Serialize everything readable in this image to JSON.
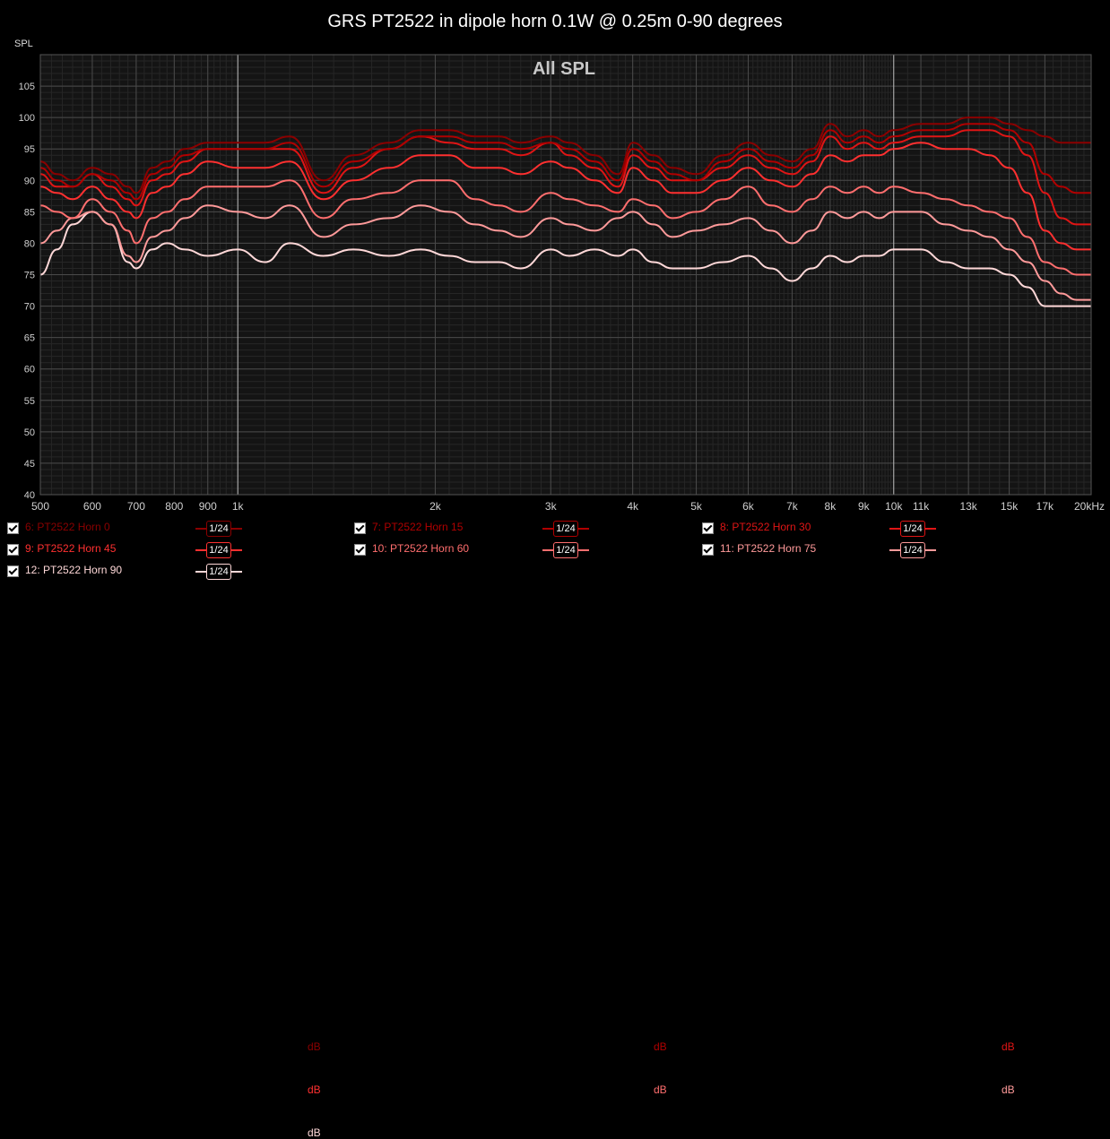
{
  "chart_data": {
    "type": "line",
    "title": "GRS PT2522 in dipole horn 0.1W @ 0.25m 0-90 degrees",
    "subtitle": "All SPL",
    "ylabel": "SPL",
    "xlabel": "",
    "x_scale": "log",
    "xlim": [
      500,
      20000
    ],
    "ylim": [
      40,
      110
    ],
    "grid": true,
    "y_ticks": [
      40,
      45,
      50,
      55,
      60,
      65,
      70,
      75,
      80,
      85,
      90,
      95,
      100,
      105
    ],
    "x_ticks": [
      {
        "v": 500,
        "label": "500"
      },
      {
        "v": 600,
        "label": "600"
      },
      {
        "v": 700,
        "label": "700"
      },
      {
        "v": 800,
        "label": "800"
      },
      {
        "v": 900,
        "label": "900"
      },
      {
        "v": 1000,
        "label": "1k"
      },
      {
        "v": 2000,
        "label": "2k"
      },
      {
        "v": 3000,
        "label": "3k"
      },
      {
        "v": 4000,
        "label": "4k"
      },
      {
        "v": 5000,
        "label": "5k"
      },
      {
        "v": 6000,
        "label": "6k"
      },
      {
        "v": 7000,
        "label": "7k"
      },
      {
        "v": 8000,
        "label": "8k"
      },
      {
        "v": 9000,
        "label": "9k"
      },
      {
        "v": 10000,
        "label": "10k"
      },
      {
        "v": 11000,
        "label": "11k"
      },
      {
        "v": 13000,
        "label": "13k"
      },
      {
        "v": 15000,
        "label": "15k"
      },
      {
        "v": 17000,
        "label": "17k"
      },
      {
        "v": 20000,
        "label": "20kHz"
      }
    ],
    "x_points": [
      500,
      530,
      560,
      600,
      640,
      680,
      700,
      740,
      780,
      830,
      900,
      1000,
      1100,
      1200,
      1350,
      1500,
      1700,
      1900,
      2100,
      2300,
      2500,
      2700,
      3000,
      3200,
      3500,
      3800,
      4000,
      4300,
      4600,
      5000,
      5500,
      6000,
      6500,
      7000,
      7500,
      8000,
      8500,
      9000,
      9500,
      10000,
      11000,
      12000,
      13000,
      14000,
      15000,
      16000,
      17000,
      18000,
      19000,
      20000
    ],
    "series": [
      {
        "name": "6: PT2522 Horn 0",
        "label": "6: PT2522 Horn 0",
        "color": "#8b0000",
        "values": [
          93,
          91,
          90,
          92,
          91,
          89,
          88,
          92,
          93,
          95,
          96,
          96,
          96,
          97,
          90,
          94,
          96,
          98,
          98,
          97,
          97,
          96,
          97,
          96,
          94,
          91,
          96,
          94,
          92,
          91,
          94,
          96,
          94,
          93,
          95,
          99,
          97,
          98,
          97,
          98,
          99,
          99,
          100,
          100,
          99,
          98,
          97,
          96,
          96,
          96
        ]
      },
      {
        "name": "7: PT2522 Horn 15",
        "label": "7: PT2522 Horn 15",
        "color": "#b00000",
        "values": [
          92,
          90,
          89,
          91,
          90,
          88,
          87,
          91,
          92,
          94,
          95,
          95,
          95,
          96,
          89,
          93,
          95,
          97,
          97,
          96,
          96,
          95,
          96,
          95,
          93,
          90,
          95,
          93,
          91,
          90,
          93,
          95,
          93,
          92,
          94,
          98,
          96,
          97,
          96,
          97,
          98,
          98,
          99,
          99,
          98,
          96,
          91,
          89,
          88,
          88
        ]
      },
      {
        "name": "8: PT2522 Horn 30",
        "label": "8: PT2522 Horn 30",
        "color": "#e01515",
        "values": [
          91,
          89,
          89,
          91,
          89,
          87,
          86,
          90,
          91,
          93,
          95,
          95,
          95,
          95,
          88,
          92,
          95,
          97,
          96,
          95,
          95,
          94,
          96,
          94,
          92,
          89,
          94,
          92,
          90,
          90,
          92,
          94,
          92,
          91,
          93,
          97,
          95,
          96,
          95,
          96,
          97,
          97,
          98,
          98,
          97,
          94,
          88,
          84,
          83,
          83
        ]
      },
      {
        "name": "9: PT2522 Horn 45",
        "label": "9: PT2522 Horn 45",
        "color": "#ff3030",
        "values": [
          89,
          88,
          87,
          89,
          87,
          85,
          84,
          88,
          89,
          91,
          93,
          92,
          92,
          93,
          87,
          90,
          92,
          94,
          94,
          92,
          92,
          91,
          93,
          92,
          90,
          88,
          92,
          90,
          88,
          88,
          90,
          92,
          90,
          89,
          91,
          94,
          93,
          94,
          94,
          95,
          96,
          95,
          95,
          94,
          92,
          88,
          82,
          80,
          79,
          79
        ]
      },
      {
        "name": "10: PT2522 Horn 60",
        "label": "10: PT2522 Horn 60",
        "color": "#ff6e6e",
        "values": [
          86,
          85,
          84,
          87,
          85,
          82,
          80,
          84,
          85,
          87,
          89,
          89,
          89,
          90,
          84,
          87,
          88,
          90,
          90,
          87,
          86,
          85,
          88,
          87,
          86,
          85,
          87,
          86,
          84,
          85,
          87,
          89,
          86,
          85,
          87,
          89,
          88,
          89,
          88,
          89,
          88,
          87,
          86,
          85,
          84,
          81,
          77,
          76,
          75,
          75
        ]
      },
      {
        "name": "11: PT2522 Horn 75",
        "label": "11: PT2522 Horn 75",
        "color": "#ff9a9a",
        "values": [
          80,
          82,
          84,
          85,
          83,
          78,
          77,
          81,
          82,
          84,
          86,
          85,
          84,
          86,
          81,
          83,
          84,
          86,
          85,
          83,
          82,
          81,
          84,
          83,
          82,
          84,
          85,
          83,
          81,
          82,
          83,
          84,
          82,
          80,
          82,
          85,
          84,
          85,
          84,
          85,
          85,
          83,
          82,
          81,
          79,
          77,
          74,
          72,
          71,
          71
        ]
      },
      {
        "name": "12: PT2522 Horn 90",
        "label": "12: PT2522 Horn 90",
        "color": "#ffd8d8",
        "values": [
          75,
          79,
          83,
          85,
          83,
          77,
          76,
          79,
          80,
          79,
          78,
          79,
          77,
          80,
          78,
          79,
          78,
          79,
          78,
          77,
          77,
          76,
          79,
          78,
          79,
          78,
          79,
          77,
          76,
          76,
          77,
          78,
          76,
          74,
          76,
          78,
          77,
          78,
          78,
          79,
          79,
          77,
          76,
          76,
          75,
          73,
          70,
          70,
          70,
          70
        ]
      }
    ]
  },
  "legend": [
    {
      "label": "6: PT2522 Horn 0",
      "smoothing": "1/24",
      "unit": "dB",
      "checked": true,
      "color": "#8b0000"
    },
    {
      "label": "7: PT2522 Horn 15",
      "smoothing": "1/24",
      "unit": "dB",
      "checked": true,
      "color": "#b00000"
    },
    {
      "label": "8: PT2522 Horn 30",
      "smoothing": "1/24",
      "unit": "dB",
      "checked": true,
      "color": "#e01515"
    },
    {
      "label": "9: PT2522 Horn 45",
      "smoothing": "1/24",
      "unit": "dB",
      "checked": true,
      "color": "#ff3030"
    },
    {
      "label": "10: PT2522 Horn 60",
      "smoothing": "1/24",
      "unit": "dB",
      "checked": true,
      "color": "#ff6e6e"
    },
    {
      "label": "11: PT2522 Horn 75",
      "smoothing": "1/24",
      "unit": "dB",
      "checked": true,
      "color": "#ff9a9a"
    },
    {
      "label": "12: PT2522 Horn 90",
      "smoothing": "1/24",
      "unit": "dB",
      "checked": true,
      "color": "#ffd8d8"
    }
  ]
}
